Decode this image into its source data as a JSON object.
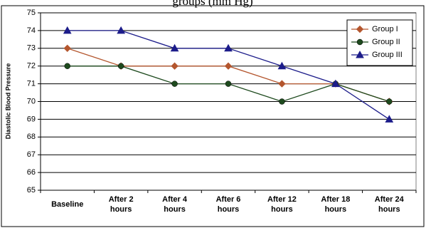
{
  "chart_data": {
    "type": "line",
    "title": "groups (mm Hg)",
    "y_label": "Diastolic Blood Pressure",
    "categories": [
      "Baseline",
      "After 2 hours",
      "After 4 hours",
      "After 6 hours",
      "After 12 hours",
      "After 18 hours",
      "After 24 hours"
    ],
    "series": [
      {
        "name": "Group I",
        "color": "#b4562e",
        "marker": "diamond",
        "values": [
          73,
          72,
          72,
          72,
          71,
          71,
          70
        ]
      },
      {
        "name": "Group II",
        "color": "#1e4a1e",
        "marker": "circle",
        "values": [
          72,
          72,
          71,
          71,
          70,
          71,
          70
        ]
      },
      {
        "name": "Group III",
        "color": "#1c1c8a",
        "marker": "triangle",
        "values": [
          74,
          74,
          73,
          73,
          72,
          71,
          69
        ]
      }
    ],
    "ylim": [
      65,
      75
    ],
    "yticks": [
      65,
      66,
      67,
      68,
      69,
      70,
      71,
      72,
      73,
      74,
      75
    ],
    "grid": true,
    "legend": "top-right"
  }
}
